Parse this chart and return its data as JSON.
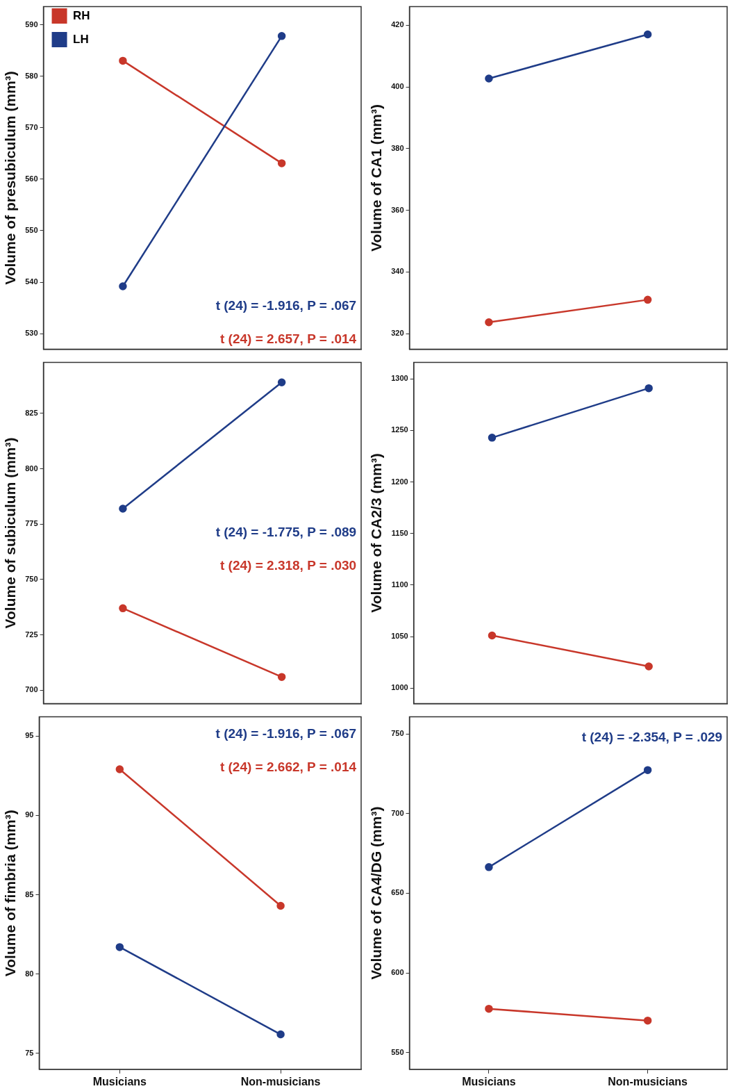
{
  "chart_data": [
    {
      "type": "line",
      "ylabel": "Volume of presubiculum (mm³)",
      "categories": [
        null,
        null
      ],
      "ylim": [
        527,
        593.5
      ],
      "yticks": [
        530,
        540,
        550,
        560,
        570,
        580,
        590
      ],
      "grid": false,
      "legend": "top left",
      "marker": "circle",
      "tick_labels": "y",
      "series": [
        {
          "name": "LH",
          "color": "#1f3c88",
          "values": [
            539.2,
            587.8
          ]
        },
        {
          "name": "RH",
          "color": "#c8372a",
          "values": [
            583,
            563.1
          ]
        }
      ],
      "annotations": [
        "t (24) = -1.916, P = .067",
        "t (24) = 2.657, P = .014"
      ]
    },
    {
      "type": "line",
      "ylabel": "Volume of CA1 (mm³)",
      "categories": [
        null,
        null
      ],
      "ylim": [
        315,
        426
      ],
      "yticks": [
        320,
        340,
        360,
        380,
        400,
        420
      ],
      "grid": false,
      "legend": false,
      "marker": "circle",
      "tick_labels": "y",
      "series": [
        {
          "color": "#1f3c88",
          "values": [
            402.7,
            417
          ]
        },
        {
          "color": "#c8372a",
          "values": [
            323.7,
            331
          ]
        }
      ]
    },
    {
      "type": "line",
      "ylabel": "Volume of subiculum (mm³)",
      "categories": [
        null,
        null
      ],
      "ylim": [
        694,
        848
      ],
      "yticks": [
        700,
        725,
        750,
        775,
        800,
        825
      ],
      "grid": false,
      "legend": false,
      "marker": "circle",
      "tick_labels": "y",
      "series": [
        {
          "color": "#1f3c88",
          "values": [
            782,
            839
          ]
        },
        {
          "color": "#c8372a",
          "values": [
            737,
            706
          ]
        }
      ],
      "annotations": [
        "t (24) = -1.775, P = .089",
        "t (24) = 2.318, P = .030"
      ]
    },
    {
      "type": "line",
      "ylabel": "Volume of CA2/3 (mm³)",
      "categories": [
        null,
        null
      ],
      "ylim": [
        985,
        1316
      ],
      "yticks": [
        1000,
        1050,
        1100,
        1150,
        1200,
        1250,
        1300
      ],
      "grid": false,
      "legend": false,
      "marker": "circle",
      "tick_labels": "y",
      "series": [
        {
          "color": "#1f3c88",
          "values": [
            1243,
            1291
          ]
        },
        {
          "color": "#c8372a",
          "values": [
            1051,
            1021
          ]
        }
      ]
    },
    {
      "type": "line",
      "ylabel": "Volume of fimbria (mm³)",
      "categories": [
        "Musicians",
        "Non-musicians"
      ],
      "ylim": [
        74,
        96.2
      ],
      "yticks": [
        75,
        80,
        85,
        90,
        95
      ],
      "grid": false,
      "legend": false,
      "marker": "circle",
      "series": [
        {
          "color": "#1f3c88",
          "values": [
            81.7,
            76.2
          ]
        },
        {
          "color": "#c8372a",
          "values": [
            92.9,
            84.3
          ]
        }
      ],
      "annotations": [
        "t (24) = -1.916, P = .067",
        "t (24) = 2.662, P = .014"
      ]
    },
    {
      "type": "line",
      "ylabel": "Volume of CA4/DG (mm³)",
      "categories": [
        "Musicians",
        "Non-musicians"
      ],
      "ylim": [
        539.5,
        760.7
      ],
      "yticks": [
        550,
        600,
        650,
        700,
        750
      ],
      "grid": false,
      "legend": false,
      "marker": "circle",
      "series": [
        {
          "color": "#1f3c88",
          "values": [
            666.4,
            727.3
          ]
        },
        {
          "color": "#c8372a",
          "values": [
            577.5,
            570.1
          ]
        }
      ],
      "annotations": [
        "t (24) = -2.354, P = .029"
      ]
    }
  ]
}
